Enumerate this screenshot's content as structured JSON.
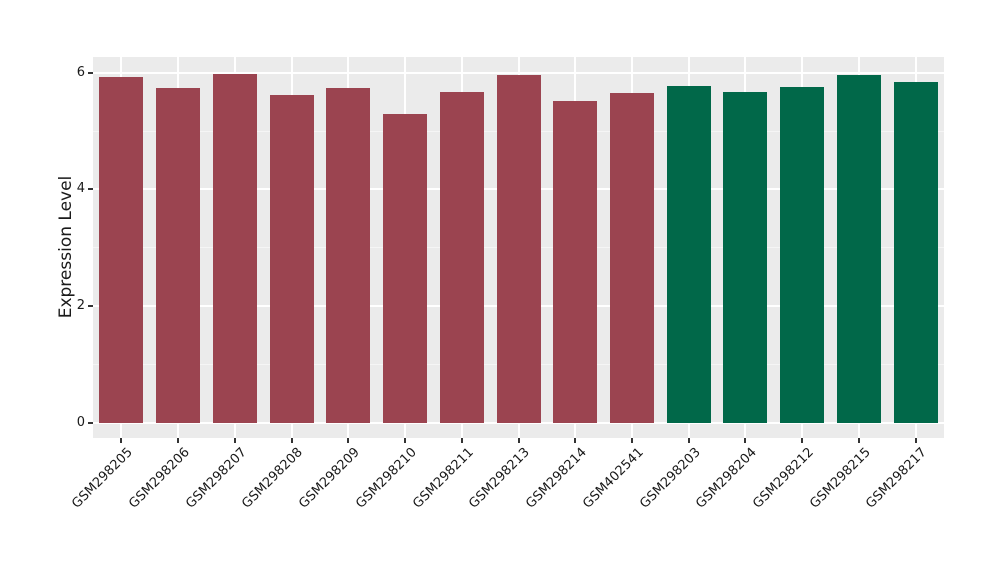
{
  "chart_data": {
    "type": "bar",
    "title": "",
    "xlabel": "",
    "ylabel": "Expression Level",
    "categories": [
      "GSM298205",
      "GSM298206",
      "GSM298207",
      "GSM298208",
      "GSM298209",
      "GSM298210",
      "GSM298211",
      "GSM298213",
      "GSM298214",
      "GSM402541",
      "GSM298203",
      "GSM298204",
      "GSM298212",
      "GSM298215",
      "GSM298217"
    ],
    "values": [
      5.93,
      5.74,
      5.98,
      5.62,
      5.74,
      5.3,
      5.67,
      5.97,
      5.52,
      5.66,
      5.78,
      5.67,
      5.76,
      5.97,
      5.85
    ],
    "bar_groups": [
      0,
      0,
      0,
      0,
      0,
      0,
      0,
      0,
      0,
      0,
      1,
      1,
      1,
      1,
      1
    ],
    "group_colors": [
      "#9B4450",
      "#016849"
    ],
    "yticks": [
      0,
      2,
      4,
      6
    ],
    "ytick_labels": [
      "0",
      "2",
      "4",
      "6"
    ],
    "yticks_minor": [
      1,
      3,
      5
    ],
    "ylim": [
      -0.26,
      6.27
    ],
    "x_tick_rotation_deg": 45,
    "grid": "on",
    "legend": "none",
    "panel_bg": "#EBEBEB",
    "figure_bg": "#FFFFFF",
    "grid_major_color": "#FFFFFF",
    "grid_minor_color": "#F5F5F5",
    "tick_mark_color": "#333333",
    "text_color": "#1A1A1A"
  }
}
